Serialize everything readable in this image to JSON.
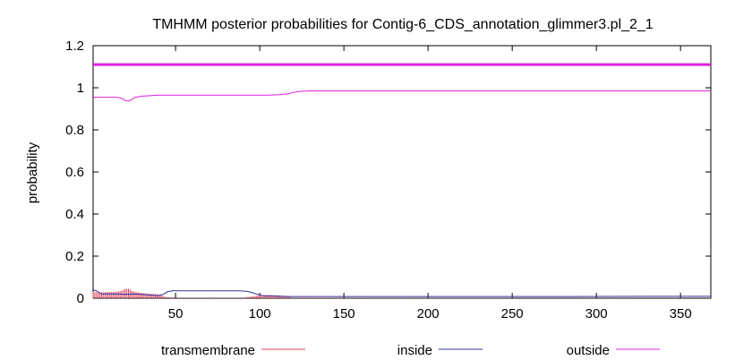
{
  "chart_data": {
    "type": "line",
    "title": "TMHMM posterior probabilities for Contig-6_CDS_annotation_glimmer3.pl_2_1",
    "xlabel": "",
    "ylabel": "probability",
    "xlim": [
      1,
      368
    ],
    "ylim": [
      0,
      1.2
    ],
    "grid": false,
    "legend_position": "bottom",
    "x_ticks": [
      50,
      100,
      150,
      200,
      250,
      300,
      350
    ],
    "y_ticks": [
      0,
      0.2,
      0.4,
      0.6,
      0.8,
      1,
      1.2
    ],
    "y_tick_labels": [
      "0",
      "0.2",
      "0.4",
      "0.6",
      "0.8",
      "1",
      "1.2"
    ],
    "reference_line": {
      "y": 1.11,
      "color": "#e020e0"
    },
    "series": [
      {
        "name": "transmembrane",
        "color": "#e0405a",
        "style": "impulses",
        "points": [
          [
            1,
            0.03
          ],
          [
            5,
            0.028
          ],
          [
            8,
            0.028
          ],
          [
            10,
            0.03
          ],
          [
            14,
            0.03
          ],
          [
            18,
            0.035
          ],
          [
            20,
            0.045
          ],
          [
            22,
            0.045
          ],
          [
            24,
            0.035
          ],
          [
            26,
            0.03
          ],
          [
            30,
            0.025
          ],
          [
            34,
            0.022
          ],
          [
            38,
            0.02
          ],
          [
            41,
            0.018
          ],
          [
            44,
            0.005
          ],
          [
            50,
            0.002
          ],
          [
            90,
            0.002
          ],
          [
            95,
            0.008
          ],
          [
            100,
            0.015
          ],
          [
            106,
            0.015
          ],
          [
            112,
            0.012
          ],
          [
            116,
            0.008
          ],
          [
            120,
            0.002
          ],
          [
            368,
            0.0
          ]
        ]
      },
      {
        "name": "inside",
        "color": "#3030a0",
        "style": "line",
        "points": [
          [
            1,
            0.04
          ],
          [
            3,
            0.035
          ],
          [
            6,
            0.02
          ],
          [
            10,
            0.02
          ],
          [
            15,
            0.02
          ],
          [
            20,
            0.018
          ],
          [
            25,
            0.02
          ],
          [
            30,
            0.018
          ],
          [
            35,
            0.015
          ],
          [
            40,
            0.012
          ],
          [
            43,
            0.02
          ],
          [
            45,
            0.03
          ],
          [
            48,
            0.035
          ],
          [
            60,
            0.035
          ],
          [
            75,
            0.035
          ],
          [
            88,
            0.035
          ],
          [
            92,
            0.033
          ],
          [
            95,
            0.028
          ],
          [
            98,
            0.02
          ],
          [
            102,
            0.012
          ],
          [
            110,
            0.01
          ],
          [
            118,
            0.008
          ],
          [
            130,
            0.008
          ],
          [
            200,
            0.008
          ],
          [
            280,
            0.008
          ],
          [
            330,
            0.009
          ],
          [
            368,
            0.009
          ]
        ]
      },
      {
        "name": "outside",
        "color": "#e020e0",
        "style": "line",
        "points": [
          [
            1,
            0.955
          ],
          [
            5,
            0.955
          ],
          [
            10,
            0.955
          ],
          [
            15,
            0.955
          ],
          [
            18,
            0.95
          ],
          [
            20,
            0.94
          ],
          [
            22,
            0.937
          ],
          [
            24,
            0.945
          ],
          [
            26,
            0.955
          ],
          [
            30,
            0.96
          ],
          [
            35,
            0.962
          ],
          [
            40,
            0.965
          ],
          [
            50,
            0.965
          ],
          [
            70,
            0.965
          ],
          [
            90,
            0.965
          ],
          [
            105,
            0.965
          ],
          [
            112,
            0.967
          ],
          [
            116,
            0.97
          ],
          [
            120,
            0.978
          ],
          [
            124,
            0.983
          ],
          [
            130,
            0.985
          ],
          [
            200,
            0.985
          ],
          [
            300,
            0.985
          ],
          [
            368,
            0.985
          ]
        ]
      }
    ]
  }
}
